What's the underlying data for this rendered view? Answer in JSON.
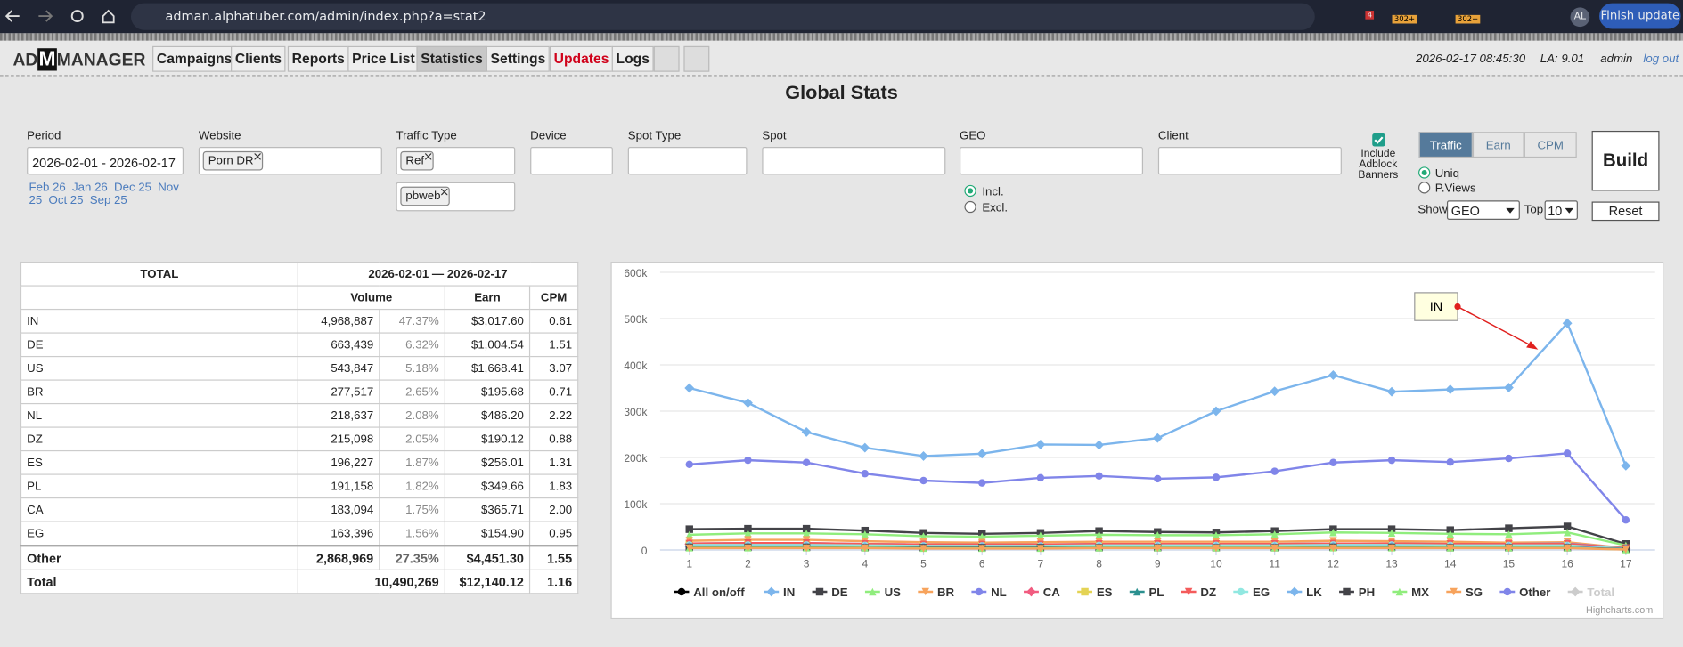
{
  "browser": {
    "url": "adman.alphatuber.com/admin/index.php?a=stat2",
    "badges": [
      "4",
      "302+",
      "302+"
    ],
    "profile": "AL",
    "update_button": "Finish update"
  },
  "nav": {
    "logo": [
      "AD",
      "M",
      "MANAGER"
    ],
    "menu": [
      "Campaigns",
      "Clients",
      "Reports",
      "Price List",
      "Statistics",
      "Settings",
      "Updates",
      "Logs"
    ],
    "datetime": "2026-02-17 08:45:30",
    "load": "LA: 9.01",
    "user": "admin",
    "logout": "log out"
  },
  "title": "Global Stats",
  "filters": {
    "labels": [
      "Period",
      "Website",
      "Traffic Type",
      "Device",
      "Spot Type",
      "Spot",
      "GEO",
      "Client"
    ],
    "period": "2026-02-01 - 2026-02-17",
    "quick_periods": [
      "Feb 26",
      "Jan 26",
      "Dec 25",
      "Nov 25",
      "Oct 25",
      "Sep 25"
    ],
    "website_tags": [
      "Porn DR"
    ],
    "traffic_tags": [
      "Ref",
      "pbweb"
    ],
    "geo_modes": [
      "Incl.",
      "Excl."
    ],
    "adblock": "Include Adblock Banners",
    "tabs": [
      "Traffic",
      "Earn",
      "CPM"
    ],
    "counts": [
      "Uniq",
      "P.Views"
    ],
    "show_label": "Show",
    "show_value": "GEO",
    "top_label": "Top",
    "top_value": "10",
    "build": "Build",
    "reset": "Reset"
  },
  "table": {
    "header": [
      "TOTAL",
      "2026-02-01 — 2026-02-17"
    ],
    "columns": [
      "Volume",
      "Earn",
      "CPM"
    ],
    "rows": [
      [
        "IN",
        "4,968,887",
        "47.37%",
        "$3,017.60",
        "0.61"
      ],
      [
        "DE",
        "663,439",
        "6.32%",
        "$1,004.54",
        "1.51"
      ],
      [
        "US",
        "543,847",
        "5.18%",
        "$1,668.41",
        "3.07"
      ],
      [
        "BR",
        "277,517",
        "2.65%",
        "$195.68",
        "0.71"
      ],
      [
        "NL",
        "218,637",
        "2.08%",
        "$486.20",
        "2.22"
      ],
      [
        "DZ",
        "215,098",
        "2.05%",
        "$190.12",
        "0.88"
      ],
      [
        "ES",
        "196,227",
        "1.87%",
        "$256.01",
        "1.31"
      ],
      [
        "PL",
        "191,158",
        "1.82%",
        "$349.66",
        "1.83"
      ],
      [
        "CA",
        "183,094",
        "1.75%",
        "$365.71",
        "2.00"
      ],
      [
        "EG",
        "163,396",
        "1.56%",
        "$154.90",
        "0.95"
      ],
      [
        "Other",
        "2,868,969",
        "27.35%",
        "$4,451.30",
        "1.55"
      ],
      [
        "Total",
        "10,490,269",
        "$12,140.12",
        "1.16"
      ]
    ]
  },
  "chart_data": {
    "type": "line",
    "x": [
      1,
      2,
      3,
      4,
      5,
      6,
      7,
      8,
      9,
      10,
      11,
      12,
      13,
      14,
      15,
      16,
      17
    ],
    "xlim": [
      0.5,
      17.5
    ],
    "xticks": [
      1,
      2,
      3,
      4,
      5,
      6,
      7,
      8,
      9,
      10,
      11,
      12,
      13,
      14,
      15,
      16,
      17
    ],
    "ylim": [
      0,
      600000
    ],
    "yticks": [
      0,
      {
        "value": 100000,
        "label": "100k"
      },
      {
        "value": 200000,
        "label": "200k"
      },
      {
        "value": 300000,
        "label": "300k"
      },
      {
        "value": 400000,
        "label": "400k"
      },
      {
        "value": 500000,
        "label": "500k"
      },
      {
        "value": 600000,
        "label": "600k"
      }
    ],
    "grid": true,
    "legend_toggle": "All on/off",
    "annotation": "IN",
    "credits": "Highcharts.com",
    "series": [
      {
        "name": "IN",
        "color": "#7cb5ec",
        "values": [
          350000,
          318000,
          255000,
          221000,
          203000,
          208000,
          228000,
          227000,
          242000,
          300000,
          343000,
          378000,
          342000,
          347000,
          351000,
          490000,
          182000
        ]
      },
      {
        "name": "DE",
        "color": "#434348",
        "values": [
          45000,
          46000,
          46000,
          42000,
          37000,
          35000,
          37000,
          41000,
          39000,
          38000,
          41000,
          45000,
          45000,
          43000,
          47000,
          51000,
          13000
        ]
      },
      {
        "name": "US",
        "color": "#90ed7d",
        "values": [
          33000,
          36000,
          36000,
          34000,
          30000,
          29000,
          31000,
          33000,
          32000,
          32000,
          34000,
          38000,
          37000,
          35000,
          34000,
          38000,
          10000
        ]
      },
      {
        "name": "BR",
        "color": "#f7a35c",
        "values": [
          20000,
          22000,
          22000,
          19000,
          17000,
          16000,
          17000,
          18000,
          18000,
          18000,
          18000,
          20000,
          19000,
          18000,
          16000,
          17000,
          4000
        ]
      },
      {
        "name": "NL",
        "color": "#8085e9",
        "values": [
          14000,
          15000,
          15000,
          13000,
          12000,
          12000,
          12000,
          13000,
          13000,
          13000,
          13000,
          14000,
          14000,
          13000,
          13000,
          14000,
          4000
        ]
      },
      {
        "name": "CA",
        "color": "#f15c80",
        "values": [
          13000,
          13000,
          13000,
          12000,
          10000,
          10000,
          10000,
          11000,
          11000,
          11000,
          11000,
          12000,
          12000,
          11000,
          11000,
          11000,
          3000
        ]
      },
      {
        "name": "ES",
        "color": "#e4d354",
        "values": [
          13000,
          14000,
          14000,
          12000,
          11000,
          11000,
          11000,
          12000,
          12000,
          12000,
          12000,
          13000,
          13000,
          12000,
          12000,
          12000,
          3000
        ]
      },
      {
        "name": "PL",
        "color": "#2b908f",
        "values": [
          12000,
          13000,
          13000,
          12000,
          11000,
          11000,
          11000,
          12000,
          12000,
          11000,
          12000,
          13000,
          13000,
          12000,
          11000,
          12000,
          3000
        ]
      },
      {
        "name": "DZ",
        "color": "#f45b5b",
        "values": [
          14000,
          15000,
          15000,
          13000,
          12000,
          12000,
          12000,
          13000,
          13000,
          13000,
          13000,
          14000,
          14000,
          13000,
          13000,
          13000,
          4000
        ]
      },
      {
        "name": "EG",
        "color": "#91e8e1",
        "values": [
          11000,
          11000,
          11000,
          10000,
          9000,
          9000,
          9000,
          10000,
          10000,
          10000,
          10000,
          11000,
          11000,
          10000,
          10000,
          10000,
          3000
        ]
      },
      {
        "name": "LK",
        "color": "#7cb5ec",
        "values": [
          8000,
          8000,
          8000,
          7000,
          7000,
          7000,
          7000,
          7000,
          7000,
          7000,
          7000,
          8000,
          8000,
          7000,
          7000,
          7000,
          2000
        ]
      },
      {
        "name": "PH",
        "color": "#434348",
        "values": [
          6000,
          6000,
          6000,
          5000,
          5000,
          5000,
          5000,
          5000,
          5000,
          5000,
          5000,
          6000,
          6000,
          5000,
          5000,
          5000,
          2000
        ]
      },
      {
        "name": "MX",
        "color": "#90ed7d",
        "values": [
          5000,
          5000,
          5000,
          5000,
          4000,
          4000,
          4000,
          5000,
          5000,
          5000,
          5000,
          5000,
          5000,
          5000,
          5000,
          5000,
          1000
        ]
      },
      {
        "name": "SG",
        "color": "#f7a35c",
        "values": [
          4000,
          4000,
          4000,
          4000,
          3000,
          3000,
          3000,
          4000,
          4000,
          4000,
          4000,
          4000,
          4000,
          4000,
          4000,
          4000,
          1000
        ]
      },
      {
        "name": "Other",
        "color": "#8085e9",
        "values": [
          185000,
          194000,
          189000,
          165000,
          150000,
          145000,
          156000,
          160000,
          154000,
          157000,
          170000,
          189000,
          194000,
          190000,
          198000,
          209000,
          65000
        ]
      },
      {
        "name": "Total",
        "color": "#cccccc",
        "visible": false
      }
    ]
  }
}
